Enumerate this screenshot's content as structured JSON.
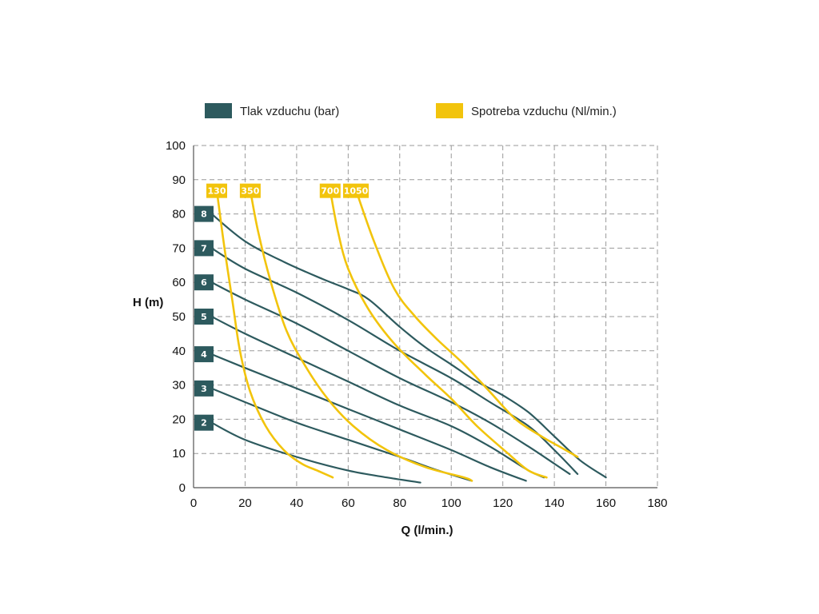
{
  "chart_data": {
    "type": "line",
    "title": "",
    "xlabel": "Q (l/min.)",
    "ylabel": "H (m)",
    "xlim": [
      0,
      180
    ],
    "ylim": [
      0,
      100
    ],
    "x_ticks": [
      "0",
      "20",
      "40",
      "60",
      "80",
      "100",
      "120",
      "140",
      "160",
      "180"
    ],
    "y_ticks": [
      "0",
      "10",
      "20",
      "30",
      "40",
      "50",
      "60",
      "70",
      "80",
      "90",
      "100"
    ],
    "grid": true,
    "legend_position": "top",
    "legend": [
      {
        "label": "Tlak vzduchu (bar)",
        "color": "#2d5a5e"
      },
      {
        "label": "Spotreba vzduchu (Nl/min.)",
        "color": "#f2c40c"
      }
    ],
    "pressure_series": [
      {
        "name": "8",
        "color": "#2d5a5e",
        "points": [
          [
            7,
            80
          ],
          [
            20,
            72
          ],
          [
            35,
            66
          ],
          [
            50,
            61
          ],
          [
            60,
            58
          ],
          [
            68,
            55
          ],
          [
            80,
            47
          ],
          [
            90,
            41
          ],
          [
            100,
            36
          ],
          [
            110,
            31
          ],
          [
            120,
            27
          ],
          [
            130,
            22
          ],
          [
            140,
            15
          ],
          [
            150,
            8
          ],
          [
            160,
            3
          ]
        ]
      },
      {
        "name": "7",
        "color": "#2d5a5e",
        "points": [
          [
            7,
            70
          ],
          [
            20,
            64
          ],
          [
            40,
            57
          ],
          [
            60,
            49
          ],
          [
            80,
            40
          ],
          [
            100,
            32
          ],
          [
            115,
            25
          ],
          [
            130,
            18
          ],
          [
            140,
            11
          ],
          [
            149,
            4
          ]
        ]
      },
      {
        "name": "6",
        "color": "#2d5a5e",
        "points": [
          [
            7,
            60
          ],
          [
            20,
            55
          ],
          [
            40,
            48
          ],
          [
            60,
            40
          ],
          [
            80,
            32
          ],
          [
            100,
            25
          ],
          [
            115,
            19
          ],
          [
            130,
            12
          ],
          [
            140,
            7
          ],
          [
            146,
            4
          ]
        ]
      },
      {
        "name": "5",
        "color": "#2d5a5e",
        "points": [
          [
            7,
            50
          ],
          [
            20,
            45
          ],
          [
            40,
            38
          ],
          [
            60,
            31
          ],
          [
            80,
            24
          ],
          [
            100,
            18
          ],
          [
            115,
            12
          ],
          [
            130,
            5
          ],
          [
            136,
            3
          ]
        ]
      },
      {
        "name": "4",
        "color": "#2d5a5e",
        "points": [
          [
            7,
            39
          ],
          [
            20,
            35
          ],
          [
            40,
            29
          ],
          [
            60,
            23
          ],
          [
            80,
            17
          ],
          [
            100,
            11
          ],
          [
            115,
            6
          ],
          [
            129,
            2
          ]
        ]
      },
      {
        "name": "3",
        "color": "#2d5a5e",
        "points": [
          [
            7,
            29
          ],
          [
            20,
            25
          ],
          [
            40,
            19
          ],
          [
            60,
            14
          ],
          [
            80,
            9
          ],
          [
            95,
            5
          ],
          [
            108,
            2
          ]
        ]
      },
      {
        "name": "2",
        "color": "#2d5a5e",
        "points": [
          [
            7,
            19
          ],
          [
            20,
            14
          ],
          [
            40,
            9
          ],
          [
            60,
            5
          ],
          [
            75,
            3
          ],
          [
            88,
            1.5
          ]
        ]
      }
    ],
    "air_series": [
      {
        "name": "130",
        "color": "#f2c40c",
        "points": [
          [
            9,
            87
          ],
          [
            12,
            70
          ],
          [
            15,
            55
          ],
          [
            18,
            40
          ],
          [
            22,
            28
          ],
          [
            28,
            18
          ],
          [
            35,
            11
          ],
          [
            42,
            7
          ],
          [
            48,
            5
          ],
          [
            54,
            3
          ]
        ]
      },
      {
        "name": "350",
        "color": "#f2c40c",
        "points": [
          [
            22,
            87
          ],
          [
            25,
            75
          ],
          [
            30,
            60
          ],
          [
            36,
            46
          ],
          [
            43,
            36
          ],
          [
            52,
            26
          ],
          [
            62,
            18
          ],
          [
            75,
            11
          ],
          [
            90,
            6
          ],
          [
            105,
            3
          ],
          [
            108,
            2
          ]
        ]
      },
      {
        "name": "700",
        "color": "#f2c40c",
        "points": [
          [
            53,
            87
          ],
          [
            56,
            75
          ],
          [
            60,
            64
          ],
          [
            68,
            52
          ],
          [
            78,
            42
          ],
          [
            90,
            33
          ],
          [
            100,
            26
          ],
          [
            110,
            18
          ],
          [
            122,
            10
          ],
          [
            130,
            5
          ],
          [
            137,
            3
          ]
        ]
      },
      {
        "name": "1050",
        "color": "#f2c40c",
        "points": [
          [
            63,
            87
          ],
          [
            70,
            72
          ],
          [
            78,
            58
          ],
          [
            86,
            50
          ],
          [
            95,
            43
          ],
          [
            105,
            36
          ],
          [
            115,
            28
          ],
          [
            125,
            20
          ],
          [
            135,
            15
          ],
          [
            142,
            12
          ],
          [
            149,
            9
          ]
        ]
      }
    ]
  }
}
